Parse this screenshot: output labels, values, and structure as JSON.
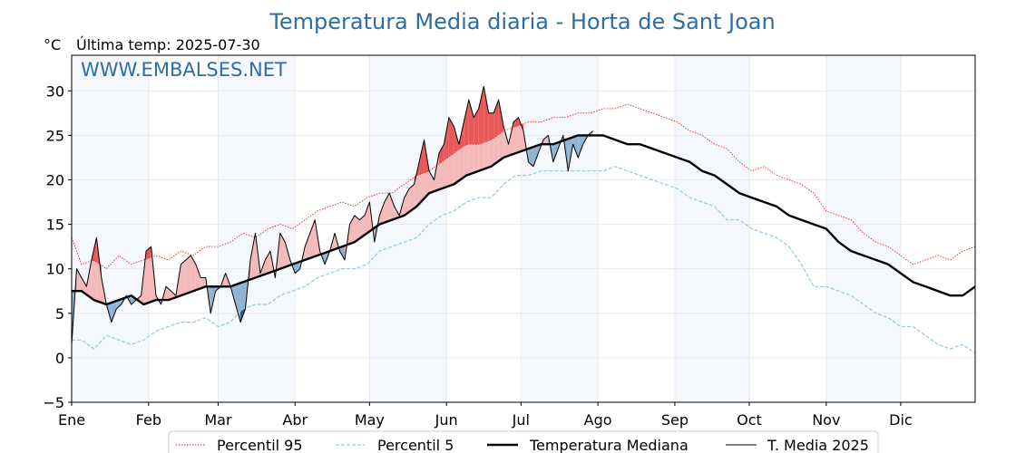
{
  "colors": {
    "title": "#2e6da4",
    "p95": "#e8281e",
    "p5": "#8fcbe0",
    "median": "#000000",
    "media2025": "#000000",
    "fill_above": "#f4b9b9",
    "fill_above_strong": "#e8585a",
    "fill_below": "#8fb4d3",
    "fill_below_strong": "#1f5b8c",
    "band": "#f4f8fc"
  },
  "chart_data": {
    "type": "line",
    "title": "Temperatura Media diaria - Horta de Sant Joan",
    "unit_label": "°C",
    "subtitle": "Última temp: 2025-07-30",
    "watermark": "WWW.EMBALSES.NET",
    "x_unit": "day_of_year",
    "xlim": [
      1,
      365
    ],
    "ylim": [
      -5,
      34
    ],
    "yticks": [
      -5,
      0,
      5,
      10,
      15,
      20,
      25,
      30
    ],
    "ytick_labels": [
      "−5",
      "0",
      "5",
      "10",
      "15",
      "20",
      "25",
      "30"
    ],
    "grid": true,
    "legend_position": "bottom-center",
    "months": [
      {
        "label": "Ene",
        "day": 1
      },
      {
        "label": "Feb",
        "day": 32
      },
      {
        "label": "Mar",
        "day": 60
      },
      {
        "label": "Abr",
        "day": 91
      },
      {
        "label": "May",
        "day": 121
      },
      {
        "label": "Jun",
        "day": 152
      },
      {
        "label": "Jul",
        "day": 182
      },
      {
        "label": "Ago",
        "day": 213
      },
      {
        "label": "Sep",
        "day": 244
      },
      {
        "label": "Oct",
        "day": 274
      },
      {
        "label": "Nov",
        "day": 305
      },
      {
        "label": "Dic",
        "day": 335
      }
    ],
    "series": [
      {
        "name": "Percentil 95",
        "style": "dotted-red",
        "x": [
          1,
          5,
          10,
          15,
          20,
          25,
          30,
          35,
          40,
          45,
          50,
          55,
          60,
          65,
          70,
          75,
          80,
          85,
          90,
          95,
          100,
          105,
          110,
          115,
          120,
          125,
          130,
          135,
          140,
          145,
          150,
          155,
          160,
          165,
          170,
          175,
          180,
          185,
          190,
          195,
          200,
          205,
          210,
          215,
          220,
          225,
          230,
          235,
          240,
          245,
          250,
          255,
          260,
          265,
          270,
          275,
          280,
          285,
          290,
          295,
          300,
          305,
          310,
          315,
          320,
          325,
          330,
          335,
          340,
          345,
          350,
          355,
          360,
          365
        ],
        "y": [
          13.5,
          10.5,
          11,
          10,
          11.5,
          10.5,
          11,
          11.5,
          11,
          12,
          11.5,
          12.5,
          12.5,
          13,
          14,
          13.5,
          14.5,
          15,
          14.5,
          15.5,
          16.5,
          17,
          17.5,
          17,
          18,
          18.5,
          18.5,
          19.5,
          20.5,
          21,
          22,
          23,
          24,
          24,
          24.5,
          25.5,
          26,
          26.5,
          26.5,
          27,
          27,
          27.5,
          27.5,
          28,
          28,
          28.5,
          28,
          27.5,
          27,
          26.5,
          25.5,
          25,
          24,
          23.5,
          22,
          21,
          21.5,
          20.5,
          20,
          19.5,
          18.5,
          16.5,
          16,
          15.5,
          14,
          13,
          12.5,
          11.5,
          10.5,
          11,
          11.5,
          11,
          12,
          12.5
        ]
      },
      {
        "name": "Percentil 5",
        "style": "dashed-lightblue",
        "x": [
          1,
          5,
          10,
          15,
          20,
          25,
          30,
          35,
          40,
          45,
          50,
          55,
          60,
          65,
          70,
          75,
          80,
          85,
          90,
          95,
          100,
          105,
          110,
          115,
          120,
          125,
          130,
          135,
          140,
          145,
          150,
          155,
          160,
          165,
          170,
          175,
          180,
          185,
          190,
          195,
          200,
          205,
          210,
          215,
          220,
          225,
          230,
          235,
          240,
          245,
          250,
          255,
          260,
          265,
          270,
          275,
          280,
          285,
          290,
          295,
          300,
          305,
          310,
          315,
          320,
          325,
          330,
          335,
          340,
          345,
          350,
          355,
          360,
          365
        ],
        "y": [
          2,
          2,
          1,
          2.5,
          2,
          1.5,
          2,
          3,
          3.5,
          4,
          4,
          4.5,
          3.5,
          4,
          5.5,
          6,
          6,
          7,
          7.5,
          8,
          9,
          9.5,
          10,
          10,
          10.5,
          12,
          12.5,
          13,
          13.5,
          15,
          16,
          16.5,
          17.5,
          18,
          18,
          19.5,
          20.5,
          20.5,
          21,
          21,
          21,
          21,
          21,
          21,
          21.5,
          21,
          20.5,
          20,
          19.5,
          19,
          18,
          17.5,
          17,
          15.5,
          15.5,
          14.5,
          14,
          13.5,
          12.5,
          10.5,
          8,
          8,
          7.5,
          7,
          6,
          5,
          4.5,
          3.5,
          3.5,
          2.5,
          1.5,
          1,
          1.5,
          0.5
        ]
      },
      {
        "name": "Temperatura Mediana",
        "style": "thick-black",
        "x": [
          1,
          5,
          10,
          15,
          20,
          25,
          30,
          35,
          40,
          45,
          50,
          55,
          60,
          65,
          70,
          75,
          80,
          85,
          90,
          95,
          100,
          105,
          110,
          115,
          120,
          125,
          130,
          135,
          140,
          145,
          150,
          155,
          160,
          165,
          170,
          175,
          180,
          185,
          190,
          195,
          200,
          205,
          210,
          215,
          220,
          225,
          230,
          235,
          240,
          245,
          250,
          255,
          260,
          265,
          270,
          275,
          280,
          285,
          290,
          295,
          300,
          305,
          310,
          315,
          320,
          325,
          330,
          335,
          340,
          345,
          350,
          355,
          360,
          365
        ],
        "y": [
          7.5,
          7.5,
          6.5,
          6,
          6.5,
          7,
          6,
          6.5,
          6.5,
          7,
          7.5,
          8,
          8,
          8,
          8.5,
          9,
          9.5,
          10,
          10.5,
          11,
          11.5,
          12,
          12.5,
          13,
          14,
          15,
          15.5,
          16,
          17,
          18.5,
          19,
          19.5,
          20.5,
          21,
          21.5,
          22.5,
          23,
          23.5,
          24,
          24,
          24.5,
          25,
          25,
          25,
          24.5,
          24,
          24,
          23.5,
          23,
          22.5,
          22,
          21,
          20.5,
          19.5,
          18.5,
          18,
          17.5,
          17,
          16,
          15.5,
          15,
          14.5,
          13,
          12,
          11.5,
          11,
          10.5,
          9.5,
          8.5,
          8,
          7.5,
          7,
          7,
          8
        ]
      },
      {
        "name": "T. Media 2025",
        "style": "thin-black",
        "x": [
          1,
          3,
          5,
          7,
          9,
          11,
          13,
          15,
          17,
          19,
          21,
          23,
          25,
          27,
          29,
          31,
          33,
          35,
          37,
          39,
          41,
          43,
          45,
          47,
          49,
          51,
          53,
          55,
          57,
          59,
          61,
          63,
          65,
          67,
          69,
          71,
          73,
          75,
          77,
          79,
          81,
          83,
          85,
          87,
          89,
          91,
          93,
          95,
          97,
          99,
          101,
          103,
          105,
          107,
          109,
          111,
          113,
          115,
          117,
          119,
          121,
          123,
          125,
          127,
          129,
          131,
          133,
          135,
          137,
          139,
          141,
          143,
          145,
          147,
          149,
          151,
          153,
          155,
          157,
          159,
          161,
          163,
          165,
          167,
          169,
          171,
          173,
          175,
          177,
          179,
          181,
          183,
          185,
          187,
          189,
          191,
          193,
          195,
          197,
          199,
          201,
          203,
          205,
          207,
          209,
          211
        ],
        "y": [
          1.5,
          10,
          9,
          8,
          11,
          13.5,
          9,
          6,
          4,
          5.5,
          6,
          7,
          6,
          6.5,
          7,
          12,
          12.5,
          7,
          6,
          8,
          7.5,
          7,
          10.5,
          11,
          11.5,
          10.5,
          9,
          9,
          5,
          7.5,
          8,
          9.5,
          8,
          6,
          4,
          5.5,
          11,
          14,
          9.5,
          11,
          12,
          9,
          14,
          13,
          11,
          9.5,
          10,
          12.5,
          14,
          15.5,
          12,
          10.5,
          12,
          14,
          12,
          11,
          15,
          16,
          15.5,
          16,
          17.5,
          13,
          16,
          17.5,
          18.5,
          17,
          16,
          18,
          19,
          19.5,
          22,
          24.5,
          21,
          20,
          23,
          24,
          27,
          26,
          24,
          26.5,
          29,
          27,
          28,
          30.5,
          27.5,
          27.5,
          29,
          26,
          24,
          26.5,
          27,
          25.5,
          22,
          21.5,
          23,
          24.5,
          25,
          22,
          23.5,
          25,
          21,
          24,
          22.5,
          24,
          25,
          25.5
        ]
      }
    ]
  }
}
